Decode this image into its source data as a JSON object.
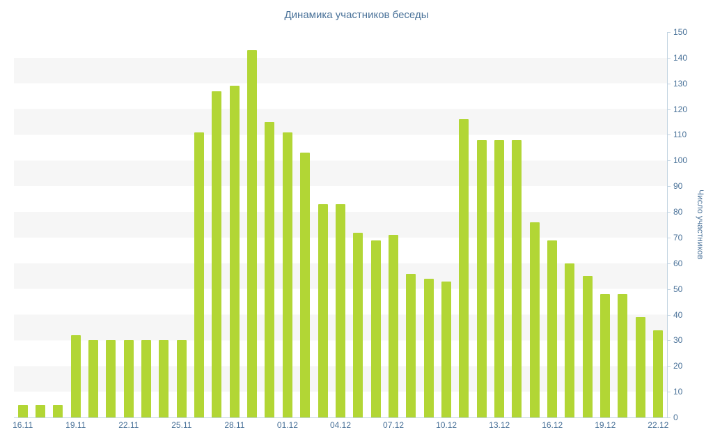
{
  "chart_data": {
    "type": "bar",
    "title": "Динамика участников беседы",
    "xlabel": "",
    "ylabel": "Число участников",
    "ylim": [
      0,
      150
    ],
    "ytick_step": 10,
    "grid": "alternating-horizontal-bands",
    "legend": "none",
    "y_axis_position": "right",
    "y_tick_labels": [
      "0",
      "10",
      "20",
      "30",
      "40",
      "50",
      "60",
      "70",
      "80",
      "90",
      "100",
      "110",
      "120",
      "130",
      "140",
      "150"
    ],
    "x_tick_labels": [
      "16.11",
      "19.11",
      "22.11",
      "25.11",
      "28.11",
      "01.12",
      "04.12",
      "07.12",
      "10.12",
      "13.12",
      "16.12",
      "19.12",
      "22.12"
    ],
    "x_tick_every_n_bars": 3,
    "categories": [
      "16.11",
      "17.11",
      "18.11",
      "19.11",
      "20.11",
      "21.11",
      "22.11",
      "23.11",
      "24.11",
      "25.11",
      "26.11",
      "27.11",
      "28.11",
      "29.11",
      "30.11",
      "01.12",
      "02.12",
      "03.12",
      "04.12",
      "05.12",
      "06.12",
      "07.12",
      "08.12",
      "09.12",
      "10.12",
      "11.12",
      "12.12",
      "13.12",
      "14.12",
      "15.12",
      "16.12",
      "17.12",
      "18.12",
      "19.12",
      "20.12",
      "21.12",
      "22.12"
    ],
    "values": [
      5,
      5,
      5,
      32,
      30,
      30,
      30,
      30,
      30,
      30,
      111,
      127,
      129,
      143,
      115,
      111,
      103,
      83,
      83,
      72,
      69,
      71,
      56,
      54,
      53,
      116,
      108,
      108,
      108,
      76,
      69,
      60,
      55,
      48,
      48,
      39,
      34
    ]
  },
  "colors": {
    "bar": "#b2d635",
    "text": "#4a7299",
    "axis_line": "#c3d4e2",
    "stripe": "#f6f6f6",
    "background": "#ffffff"
  }
}
